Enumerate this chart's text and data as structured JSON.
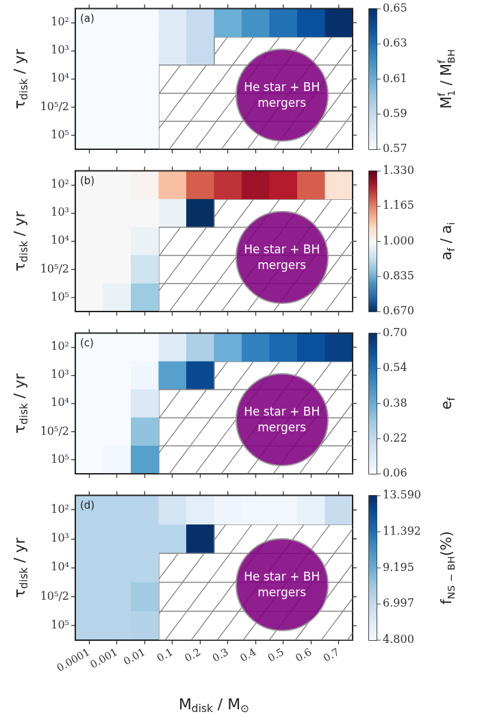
{
  "chart_data": [
    {
      "type": "heatmap",
      "categories": [
        "0.0001",
        "0.001",
        "0.01",
        "0.1",
        "0.2",
        "0.3",
        "0.4",
        "0.5",
        "0.6",
        "0.7"
      ],
      "y_categories": [
        "10²",
        "10³",
        "10⁴",
        "10⁵/2",
        "10⁵"
      ],
      "cells": [
        [
          0.57,
          0.57,
          0.57,
          0.58,
          0.59,
          0.61,
          0.62,
          0.63,
          0.64,
          0.65
        ],
        [
          0.57,
          0.57,
          0.57,
          0.58,
          0.59,
          null,
          null,
          null,
          null,
          null
        ],
        [
          0.57,
          0.57,
          0.57,
          null,
          null,
          null,
          null,
          null,
          null,
          null
        ],
        [
          0.57,
          0.57,
          0.57,
          null,
          null,
          null,
          null,
          null,
          null,
          null
        ],
        [
          0.57,
          0.57,
          0.57,
          null,
          null,
          null,
          null,
          null,
          null,
          null
        ]
      ],
      "clim": [
        0.57,
        0.65
      ],
      "cticks": [
        0.57,
        0.59,
        0.61,
        0.63,
        0.65
      ],
      "colors": [
        "#f7fbff",
        "#deebf7",
        "#c6dbef",
        "#9ecae1",
        "#6baed6",
        "#4292c6",
        "#2171b5",
        "#08519c",
        "#08306b"
      ],
      "ylabel": "τ$_{disk}$ / yr",
      "clabel": "M$_{1}$$^{f}$ / M$_{BH}$$^{f}$",
      "tick_labels": "y",
      "annotations": [
        "(a)",
        "He star + BH mergers"
      ]
    },
    {
      "type": "heatmap",
      "categories": [
        "0.0001",
        "0.001",
        "0.01",
        "0.1",
        "0.2",
        "0.3",
        "0.4",
        "0.5",
        "0.6",
        "0.7"
      ],
      "y_categories": [
        "10²",
        "10³",
        "10⁴",
        "10⁵/2",
        "10⁵"
      ],
      "cells": [
        [
          1.0,
          1.0,
          1.01,
          1.1,
          1.2,
          1.24,
          1.28,
          1.26,
          1.2,
          1.05
        ],
        [
          1.0,
          1.0,
          1.0,
          0.98,
          0.67,
          null,
          null,
          null,
          null,
          null
        ],
        [
          1.0,
          1.0,
          0.98,
          null,
          null,
          null,
          null,
          null,
          null,
          null
        ],
        [
          1.0,
          1.0,
          0.93,
          null,
          null,
          null,
          null,
          null,
          null,
          null
        ],
        [
          1.0,
          0.98,
          0.88,
          null,
          null,
          null,
          null,
          null,
          null,
          null
        ]
      ],
      "clim": [
        0.67,
        1.33
      ],
      "cticks": [
        {
          "value": 0.67,
          "label": "0.670"
        },
        {
          "value": 0.835,
          "label": "0.835"
        },
        {
          "value": 1.0,
          "label": "1.000"
        },
        {
          "value": 1.165,
          "label": "1.165"
        },
        {
          "value": 1.33,
          "label": "1.330"
        }
      ],
      "colors": [
        "#053061",
        "#2166ac",
        "#4393c3",
        "#92c5de",
        "#d1e5f0",
        "#f7f7f7",
        "#fddbc7",
        "#f4a582",
        "#d6604d",
        "#b2182b",
        "#67001f"
      ],
      "ylabel": "τ$_{disk}$ / yr",
      "clabel": "a$_{f}$ / a$_{i}$",
      "tick_labels": "y",
      "annotations": [
        "(b)",
        "He star + BH mergers"
      ]
    },
    {
      "type": "heatmap",
      "categories": [
        "0.0001",
        "0.001",
        "0.01",
        "0.1",
        "0.2",
        "0.3",
        "0.4",
        "0.5",
        "0.6",
        "0.7"
      ],
      "y_categories": [
        "10²",
        "10³",
        "10⁴",
        "10⁵/2",
        "10⁵"
      ],
      "cells": [
        [
          0.06,
          0.06,
          0.06,
          0.14,
          0.27,
          0.38,
          0.5,
          0.56,
          0.62,
          0.66
        ],
        [
          0.06,
          0.06,
          0.085,
          0.42,
          0.64,
          null,
          null,
          null,
          null,
          null
        ],
        [
          0.06,
          0.06,
          0.15,
          null,
          null,
          null,
          null,
          null,
          null,
          null
        ],
        [
          0.06,
          0.06,
          0.32,
          null,
          null,
          null,
          null,
          null,
          null,
          null
        ],
        [
          0.06,
          0.08,
          0.42,
          null,
          null,
          null,
          null,
          null,
          null,
          null
        ]
      ],
      "clim": [
        0.06,
        0.7
      ],
      "cticks": [
        0.06,
        0.22,
        0.38,
        0.54,
        {
          "value": 0.7,
          "label": "0.70"
        }
      ],
      "colors": [
        "#f7fbff",
        "#deebf7",
        "#c6dbef",
        "#9ecae1",
        "#6baed6",
        "#4292c6",
        "#2171b5",
        "#08519c",
        "#08306b"
      ],
      "ylabel": "τ$_{disk}$ / yr",
      "clabel": "e$_{f}$",
      "tick_labels": "y",
      "annotations": [
        "(c)",
        "He star + BH mergers"
      ]
    },
    {
      "type": "heatmap",
      "categories": [
        "0.0001",
        "0.001",
        "0.01",
        "0.1",
        "0.2",
        "0.3",
        "0.4",
        "0.5",
        "0.6",
        "0.7"
      ],
      "y_categories": [
        "10²",
        "10³",
        "10⁴",
        "10⁵/2",
        "10⁵"
      ],
      "cells": [
        [
          7.4,
          7.4,
          7.4,
          6.4,
          5.7,
          5.2,
          5.1,
          5.1,
          5.5,
          6.9
        ],
        [
          7.4,
          7.4,
          7.4,
          7.4,
          13.59,
          null,
          null,
          null,
          null,
          null
        ],
        [
          7.4,
          7.4,
          7.4,
          null,
          null,
          null,
          null,
          null,
          null,
          null
        ],
        [
          7.4,
          7.4,
          8.0,
          null,
          null,
          null,
          null,
          null,
          null,
          null
        ],
        [
          7.4,
          7.4,
          7.5,
          null,
          null,
          null,
          null,
          null,
          null,
          null
        ]
      ],
      "clim": [
        4.8,
        13.59
      ],
      "cticks": [
        {
          "value": 4.8,
          "label": "4.800"
        },
        6.997,
        9.195,
        11.392,
        {
          "value": 13.59,
          "label": "13.590"
        }
      ],
      "colors": [
        "#f7fbff",
        "#deebf7",
        "#c6dbef",
        "#9ecae1",
        "#6baed6",
        "#4292c6",
        "#2171b5",
        "#08519c",
        "#08306b"
      ],
      "xlabel": "M$_{disk}$ / M$_{⊙}$",
      "ylabel": "τ$_{disk}$ / yr",
      "clabel": "f$_{NS − BH}$(%)",
      "annotations": [
        "(d)",
        "He star + BH mergers"
      ]
    }
  ]
}
